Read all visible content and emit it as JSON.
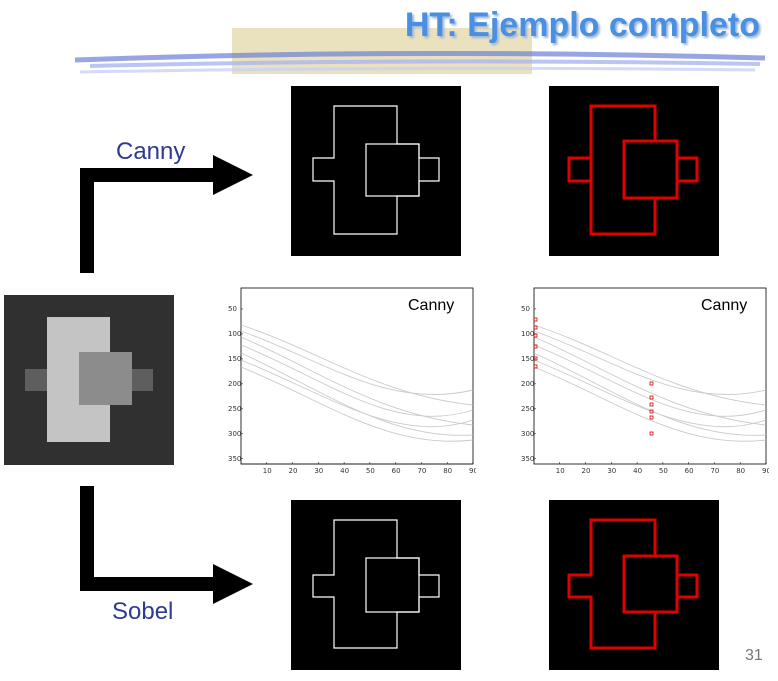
{
  "slide": {
    "title": "HT: Ejemplo completo",
    "page_number": "31"
  },
  "labels": {
    "canny": "Canny",
    "sobel": "Sobel"
  },
  "plots": [
    {
      "title": "Canny",
      "xticks": [
        "10",
        "20",
        "30",
        "40",
        "50",
        "60",
        "70",
        "80",
        "90"
      ],
      "yticks": [
        "50",
        "100",
        "150",
        "200",
        "250",
        "300",
        "350"
      ]
    },
    {
      "title": "Canny",
      "xticks": [
        "10",
        "20",
        "30",
        "40",
        "50",
        "60",
        "70",
        "80",
        "90"
      ],
      "yticks": [
        "50",
        "100",
        "150",
        "200",
        "250",
        "300",
        "350"
      ]
    }
  ],
  "colors": {
    "title": "#4a90e2",
    "label": "#2e3b8f",
    "edge_white": "#ffffff",
    "edge_red": "#e00000"
  }
}
